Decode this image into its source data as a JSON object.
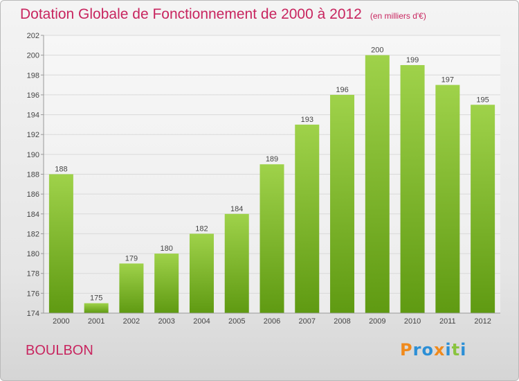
{
  "header": {
    "title": "Dotation Globale de Fonctionnement de 2000 à 2012",
    "subtitle": "(en milliers d'€)"
  },
  "footer": {
    "place": "BOULBON",
    "logo": {
      "text": "Proxiti",
      "letters": [
        "P",
        "r",
        "o",
        "x",
        "i",
        "t",
        "i"
      ],
      "colors": [
        "#f08a1c",
        "#2c8fd6",
        "#2c8fd6",
        "#f08a1c",
        "#2c8fd6",
        "#8ac43f",
        "#2c8fd6"
      ]
    }
  },
  "colors": {
    "bar_top": "#9fd24a",
    "bar_bottom": "#5f9a12",
    "title": "#c8255f",
    "grid": "#d9d9d9"
  },
  "chart_data": {
    "type": "bar",
    "categories": [
      "2000",
      "2001",
      "2002",
      "2003",
      "2004",
      "2005",
      "2006",
      "2007",
      "2008",
      "2009",
      "2010",
      "2011",
      "2012"
    ],
    "values": [
      188,
      175,
      179,
      180,
      182,
      184,
      189,
      193,
      196,
      200,
      199,
      197,
      195
    ],
    "title": "Dotation Globale de Fonctionnement de 2000 à 2012",
    "subtitle": "(en milliers d'€)",
    "xlabel": "",
    "ylabel": "",
    "ylim": [
      174,
      202
    ],
    "yticks": [
      174,
      176,
      178,
      180,
      182,
      184,
      186,
      188,
      190,
      192,
      194,
      196,
      198,
      200,
      202
    ],
    "grid": true,
    "legend": "none"
  }
}
